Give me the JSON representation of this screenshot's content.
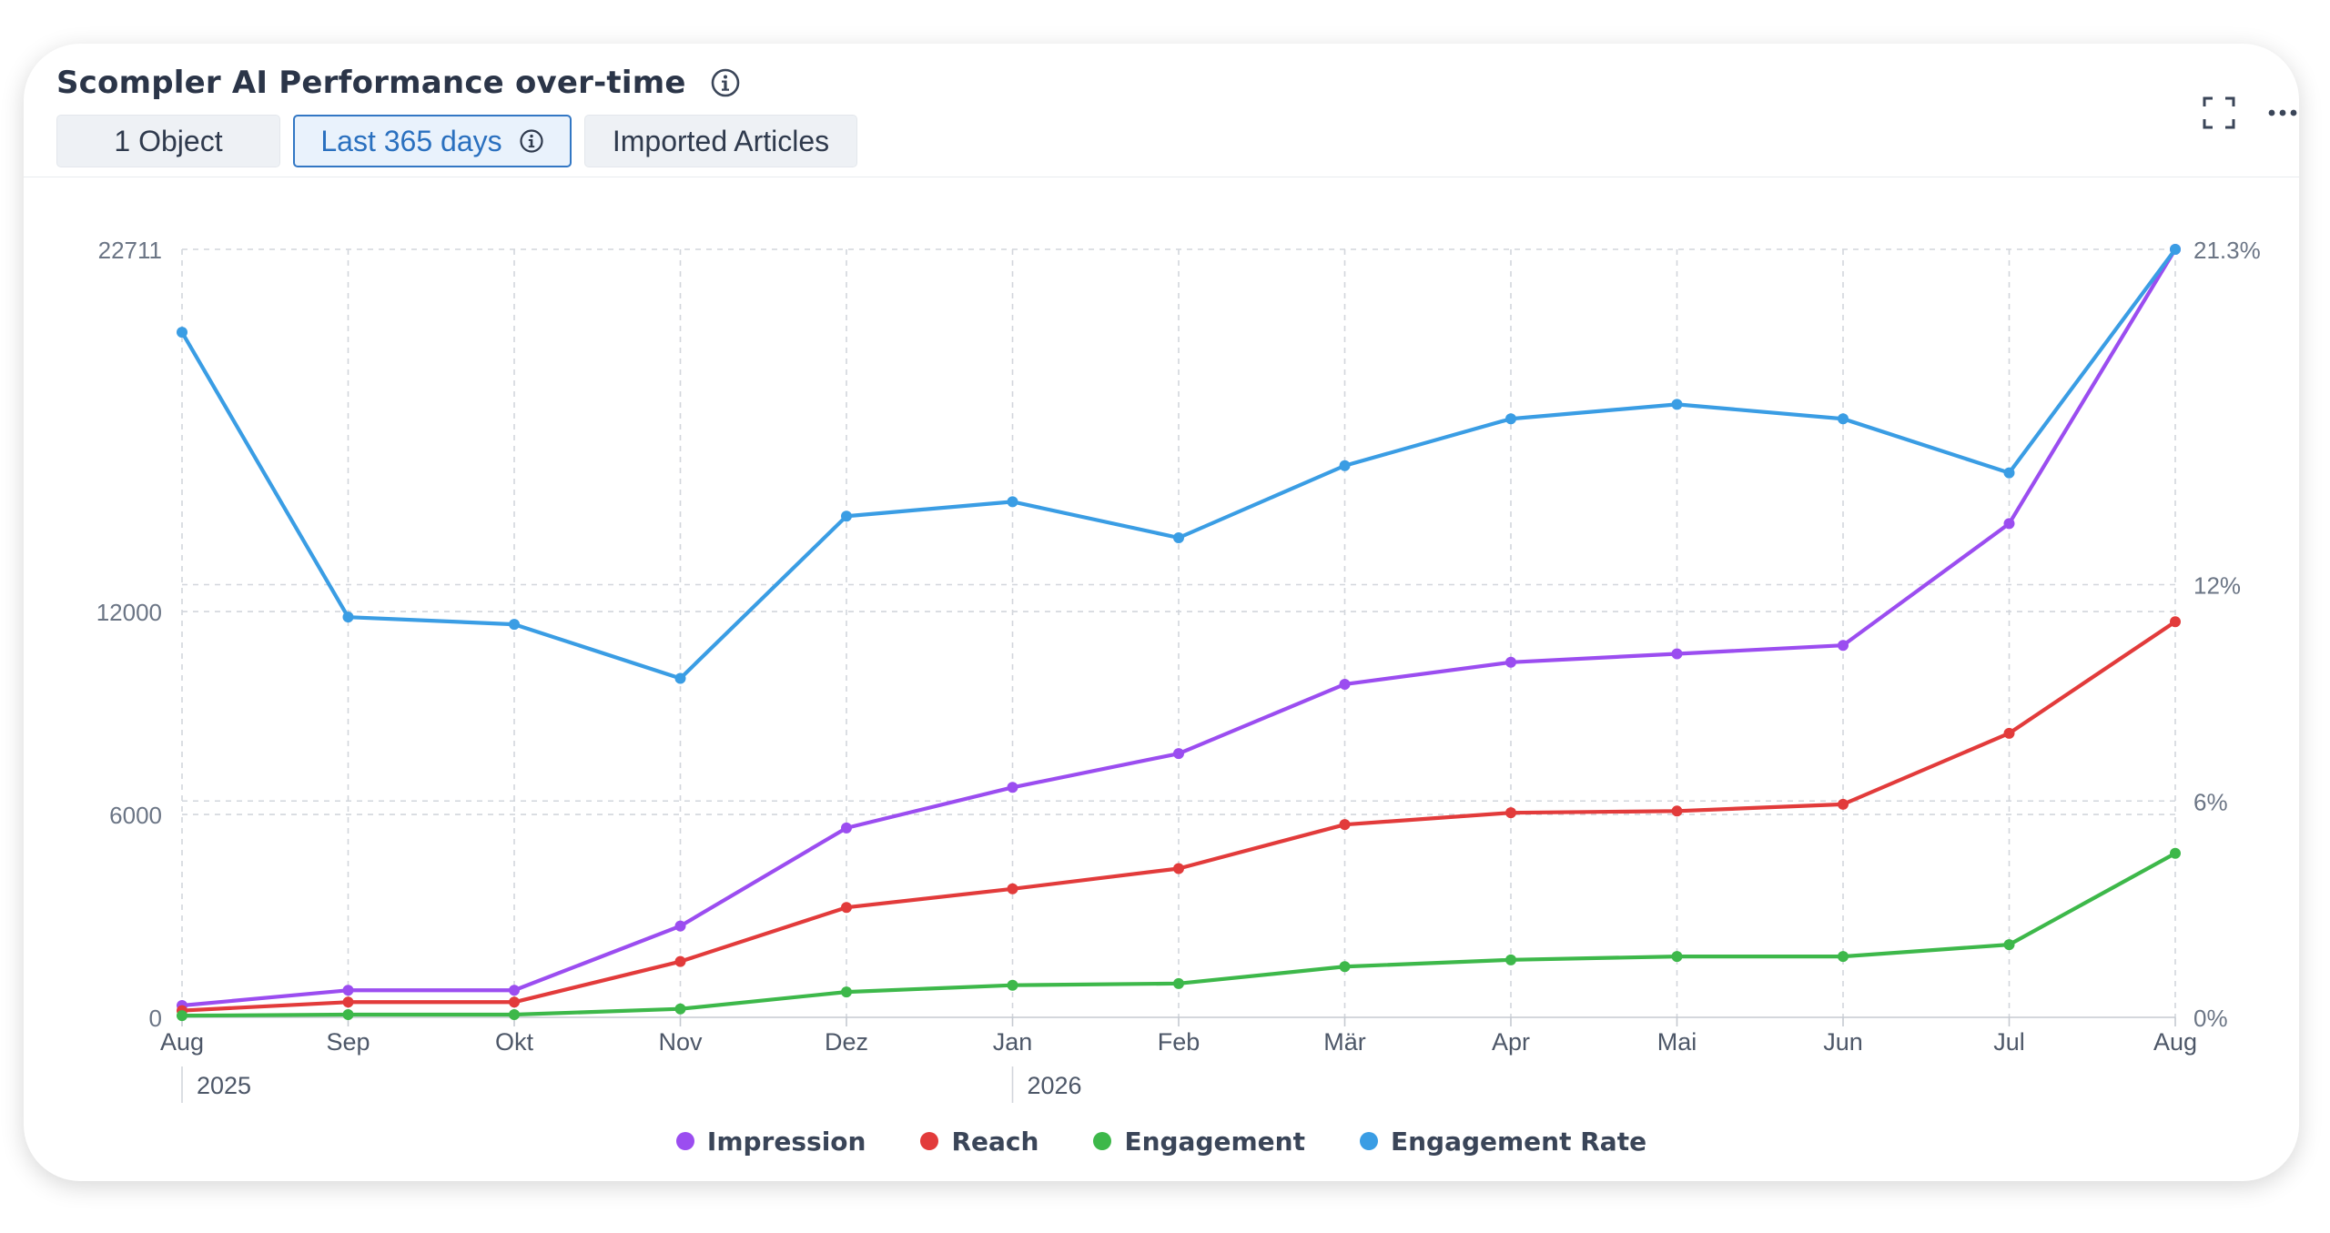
{
  "header": {
    "title": "Scompler AI Performance over-time",
    "chips": [
      {
        "label": "1 Object"
      },
      {
        "label": "Last 365 days"
      },
      {
        "label": "Imported Articles"
      }
    ]
  },
  "icons": {
    "info": "info-circle-icon",
    "expand": "fullscreen-icon",
    "more": "more-horizontal-icon"
  },
  "colors": {
    "impression": "#9b4df0",
    "reach": "#e23b3b",
    "engagement": "#3db84a",
    "engagement_rate": "#3a9de4",
    "accent": "#3277c4"
  },
  "chart_data": {
    "type": "line",
    "categories": [
      "Aug",
      "Sep",
      "Okt",
      "Nov",
      "Dez",
      "Jan",
      "Feb",
      "Mär",
      "Apr",
      "Mai",
      "Jun",
      "Jul",
      "Aug"
    ],
    "year_labels": [
      {
        "label": "2025",
        "at_index": 0
      },
      {
        "label": "2026",
        "at_index": 5
      }
    ],
    "y_left": {
      "ticks": [
        0,
        6000,
        12000,
        22711
      ],
      "tick_labels": [
        "0",
        "6000",
        "12000",
        "22711"
      ],
      "range": [
        0,
        22711
      ]
    },
    "y_right": {
      "ticks": [
        0,
        6,
        12,
        21.3
      ],
      "tick_labels": [
        "0%",
        "6%",
        "12%",
        "21.3%"
      ],
      "range": [
        0,
        21.3
      ]
    },
    "grid": true,
    "legend_position": "bottom",
    "series": [
      {
        "name": "Impression",
        "axis": "left",
        "color": "#9b4df0",
        "values": [
          350,
          800,
          800,
          2700,
          5600,
          6800,
          7800,
          9850,
          10500,
          10750,
          11000,
          14600,
          22711
        ]
      },
      {
        "name": "Reach",
        "axis": "left",
        "color": "#e23b3b",
        "values": [
          200,
          450,
          450,
          1650,
          3250,
          3800,
          4400,
          5700,
          6050,
          6100,
          6300,
          8400,
          11700
        ]
      },
      {
        "name": "Engagement",
        "axis": "left",
        "color": "#3db84a",
        "values": [
          50,
          80,
          80,
          250,
          750,
          950,
          1000,
          1500,
          1700,
          1800,
          1800,
          2150,
          4850
        ]
      },
      {
        "name": "Engagement Rate",
        "axis": "right",
        "color": "#3a9de4",
        "values": [
          19.0,
          11.1,
          10.9,
          9.4,
          13.9,
          14.3,
          13.3,
          15.3,
          16.6,
          17.0,
          16.6,
          15.1,
          21.3
        ]
      }
    ]
  }
}
